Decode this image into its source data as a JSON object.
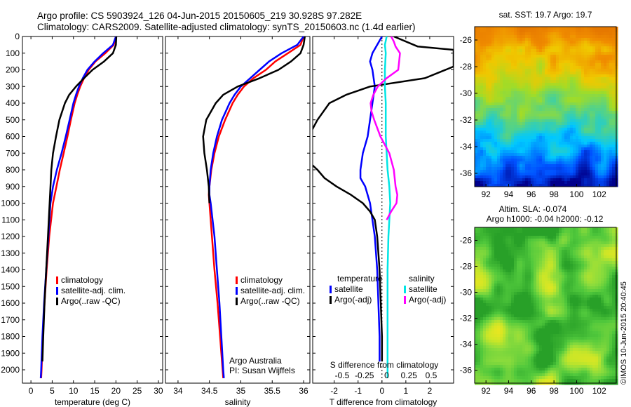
{
  "header": {
    "line1": "Argo profile: CS 5903924_126 04-Jun-2015 20150605_219 30.928S 97.282E",
    "line2": "Climatology: CARS2009. Satellite-adjusted climatology: synTS_20150603.nc (1.4d earlier)"
  },
  "credits": {
    "group": "Argo Australia",
    "pi": "PI: Susan Wijffels",
    "stamp": "©IMOS 10-Jun-2015 20:40:45"
  },
  "colors": {
    "climatology": "#ff0000",
    "satellite": "#0000ff",
    "argo": "#000000",
    "sat_salt": "#00e5e5",
    "argo_salt": "#ff00ff"
  },
  "chart_data": [
    {
      "id": "temperature",
      "type": "line",
      "xlabel": "temperature (deg C)",
      "ylabel": "",
      "xlim": [
        -2,
        31
      ],
      "ylim": [
        2080,
        0
      ],
      "xticks": [
        0,
        5,
        10,
        15,
        20,
        25,
        30
      ],
      "yticks": [
        0,
        100,
        200,
        300,
        400,
        500,
        600,
        700,
        800,
        900,
        1000,
        1100,
        1200,
        1300,
        1400,
        1500,
        1600,
        1700,
        1800,
        1900,
        2000
      ],
      "legend": [
        "climatology",
        "satellite-adj. clim.",
        "Argo(..raw -QC)"
      ],
      "series": [
        {
          "name": "climatology",
          "color": "#ff0000",
          "depth": [
            0,
            50,
            100,
            150,
            200,
            250,
            300,
            350,
            400,
            500,
            600,
            700,
            800,
            900,
            1000,
            1200,
            1400,
            1600,
            1800,
            2000,
            2050
          ],
          "values": [
            20,
            19.5,
            17.5,
            15.2,
            13.6,
            12.5,
            11.6,
            10.9,
            10.3,
            9.4,
            8.6,
            7.7,
            6.8,
            6.0,
            5.2,
            4.3,
            3.7,
            3.2,
            2.8,
            2.5,
            2.4
          ]
        },
        {
          "name": "satellite-adj. clim.",
          "color": "#0000ff",
          "depth": [
            0,
            50,
            100,
            150,
            200,
            250,
            300,
            350,
            400,
            500,
            600,
            700,
            800,
            900,
            1000,
            1200,
            1400,
            1600,
            1800,
            2000,
            2050
          ],
          "values": [
            20,
            19.3,
            17.0,
            15.0,
            13.3,
            12.2,
            11.3,
            10.6,
            10.0,
            9.1,
            8.2,
            7.2,
            6.1,
            5.2,
            4.6,
            4.1,
            3.6,
            3.1,
            2.7,
            2.4,
            2.3
          ]
        },
        {
          "name": "Argo(..raw -QC)",
          "color": "#000000",
          "depth": [
            0,
            50,
            100,
            150,
            200,
            250,
            300,
            350,
            400,
            500,
            600,
            700,
            800,
            900,
            1000,
            1200,
            1400,
            1600,
            1800,
            1950
          ],
          "values": [
            20.1,
            20.0,
            19.3,
            17.2,
            14.5,
            12.5,
            10.6,
            9.0,
            8.0,
            6.7,
            5.9,
            5.2,
            4.8,
            4.6,
            4.4,
            4.0,
            3.6,
            3.2,
            2.9,
            2.7
          ]
        }
      ]
    },
    {
      "id": "salinity",
      "type": "line",
      "xlabel": "salinity",
      "ylabel": "",
      "xlim": [
        33.8,
        36.1
      ],
      "ylim": [
        2080,
        0
      ],
      "xticks": [
        34,
        34.5,
        35,
        35.5,
        36
      ],
      "xticklabels": [
        "34",
        "34.5",
        "35",
        "35.5",
        "36"
      ],
      "legend": [
        "climatology",
        "satellite-adj. clim.",
        "Argo(..raw -QC)"
      ],
      "series": [
        {
          "name": "climatology",
          "color": "#ff0000",
          "depth": [
            0,
            50,
            100,
            150,
            200,
            250,
            300,
            350,
            400,
            500,
            600,
            700,
            800,
            900,
            950,
            1000,
            1100,
            1200,
            1400,
            1600,
            1800,
            2000,
            2050
          ],
          "values": [
            36.0,
            35.95,
            35.75,
            35.55,
            35.4,
            35.2,
            35.05,
            34.95,
            34.87,
            34.75,
            34.65,
            34.58,
            34.53,
            34.5,
            34.49,
            34.5,
            34.52,
            34.54,
            34.58,
            34.63,
            34.67,
            34.71,
            34.72
          ]
        },
        {
          "name": "satellite-adj. clim.",
          "color": "#0000ff",
          "depth": [
            0,
            50,
            100,
            150,
            200,
            250,
            300,
            350,
            400,
            500,
            600,
            700,
            800,
            900,
            950,
            1000,
            1100,
            1200,
            1400,
            1600,
            1800,
            2000,
            2050
          ],
          "values": [
            36.0,
            35.9,
            35.65,
            35.45,
            35.3,
            35.15,
            35.0,
            34.9,
            34.82,
            34.7,
            34.62,
            34.56,
            34.52,
            34.5,
            34.5,
            34.52,
            34.55,
            34.58,
            34.62,
            34.66,
            34.69,
            34.72,
            34.73
          ]
        },
        {
          "name": "Argo(..raw -QC)",
          "color": "#000000",
          "depth": [
            0,
            50,
            100,
            150,
            200,
            250,
            300,
            350,
            400,
            500,
            600,
            700,
            800,
            900,
            1000
          ],
          "values": [
            36.02,
            36.0,
            35.95,
            35.8,
            35.6,
            35.3,
            34.95,
            34.72,
            34.6,
            34.45,
            34.4,
            34.42,
            34.46,
            34.49,
            34.5
          ]
        }
      ]
    },
    {
      "id": "difference",
      "type": "line",
      "xlabel": "T difference from climatology",
      "xlabel_top": "S difference from climatology",
      "xlim": [
        -2.9,
        3.0
      ],
      "ylim": [
        2080,
        0
      ],
      "xticks": [
        -2,
        -1,
        0,
        1,
        2
      ],
      "xticks_salinity": [
        -0.5,
        -0.25,
        0,
        0.25,
        0.5
      ],
      "xticklabels_salinity": [
        "-0.5",
        "-0.25",
        "0",
        "0.25",
        "0.5"
      ],
      "legend_temperature": {
        "title": "temperature",
        "items": [
          "satellite",
          "Argo(-adj)"
        ]
      },
      "legend_salinity": {
        "title": "salinity",
        "items": [
          "satellite",
          "Argo(-adj)"
        ]
      },
      "series": [
        {
          "name": "temperature satellite",
          "color": "#0000ff",
          "depth": [
            0,
            50,
            100,
            150,
            200,
            300,
            400,
            500,
            600,
            700,
            800,
            850,
            900,
            1000,
            1100,
            1200,
            1400,
            1600,
            1800,
            1950
          ],
          "values": [
            0,
            -0.2,
            -0.4,
            -0.5,
            -0.4,
            -0.3,
            -0.4,
            -0.5,
            -0.6,
            -0.8,
            -0.9,
            -0.9,
            -0.7,
            -0.5,
            -0.4,
            -0.3,
            -0.2,
            -0.15,
            -0.1,
            -0.1
          ]
        },
        {
          "name": "temperature Argo(-adj)",
          "color": "#000000",
          "depth": [
            0,
            60,
            80,
            120,
            180,
            250,
            300,
            350,
            400,
            500,
            580,
            600,
            650,
            700,
            760,
            800,
            850,
            900,
            950,
            1000,
            1050,
            1100,
            1200,
            1400,
            1600,
            1800,
            1950
          ],
          "values": [
            0.5,
            1.5,
            3.0,
            3.0,
            3.0,
            1.8,
            -0.5,
            -1.5,
            -2.2,
            -2.7,
            -3.0,
            -3.0,
            -3.0,
            -3.0,
            -3.0,
            -2.7,
            -2.4,
            -1.9,
            -1.3,
            -0.8,
            -0.5,
            -0.3,
            -0.2,
            -0.1,
            -0.05,
            0,
            0
          ]
        },
        {
          "name": "salinity satellite",
          "color": "#00e5e5",
          "depth": [
            0,
            50,
            100,
            200,
            300,
            400,
            500,
            600,
            700,
            800,
            900,
            1000,
            1100,
            1200,
            1400,
            1600,
            1800,
            2000,
            2050
          ],
          "values": [
            0,
            -0.02,
            -0.01,
            -0.02,
            -0.02,
            -0.01,
            -0.01,
            -0.01,
            0,
            0.01,
            0.03,
            0.04,
            0.03,
            0.02,
            0.01,
            0.01,
            0.01,
            0.01,
            0.01
          ]
        },
        {
          "name": "salinity Argo(-adj)",
          "color": "#ff00ff",
          "depth": [
            0,
            30,
            60,
            100,
            150,
            200,
            250,
            300,
            350,
            400,
            450,
            500,
            600,
            700,
            800,
            900,
            950,
            1000,
            1050,
            1100
          ],
          "values": [
            0.05,
            0.08,
            0.1,
            0.15,
            0.14,
            0.13,
            0.0,
            -0.1,
            -0.15,
            -0.18,
            -0.17,
            -0.14,
            -0.07,
            0.03,
            0.08,
            0.1,
            0.12,
            0.11,
            0.05,
            0.0
          ]
        }
      ]
    },
    {
      "id": "sst_map",
      "type": "heatmap",
      "title": "sat. SST: 19.7 Argo: 19.7",
      "xlim": [
        91,
        103.5
      ],
      "ylim": [
        -37,
        -25
      ],
      "xticks": [
        92,
        94,
        96,
        98,
        100,
        102
      ],
      "yticks": [
        -26,
        -28,
        -30,
        -32,
        -34,
        -36
      ],
      "colorscale": [
        "#00008c",
        "#0050ff",
        "#00c8ff",
        "#50d28c",
        "#a0dc28",
        "#f0c800",
        "#f08c00",
        "#e67800"
      ]
    },
    {
      "id": "sla_map",
      "type": "heatmap",
      "title": "Altim. SLA: -0.074",
      "subtitle": "Argo h1000: -0.04 h2000: -0.12",
      "xlim": [
        91,
        103.5
      ],
      "ylim": [
        -37,
        -25
      ],
      "xticks": [
        92,
        94,
        96,
        98,
        100,
        102
      ],
      "yticks": [
        -26,
        -28,
        -30,
        -32,
        -34,
        -36
      ],
      "colorscale": [
        "#28a028",
        "#50c83c",
        "#8cdc3c",
        "#c8e628",
        "#f0e61e",
        "#f0b41e"
      ]
    }
  ]
}
